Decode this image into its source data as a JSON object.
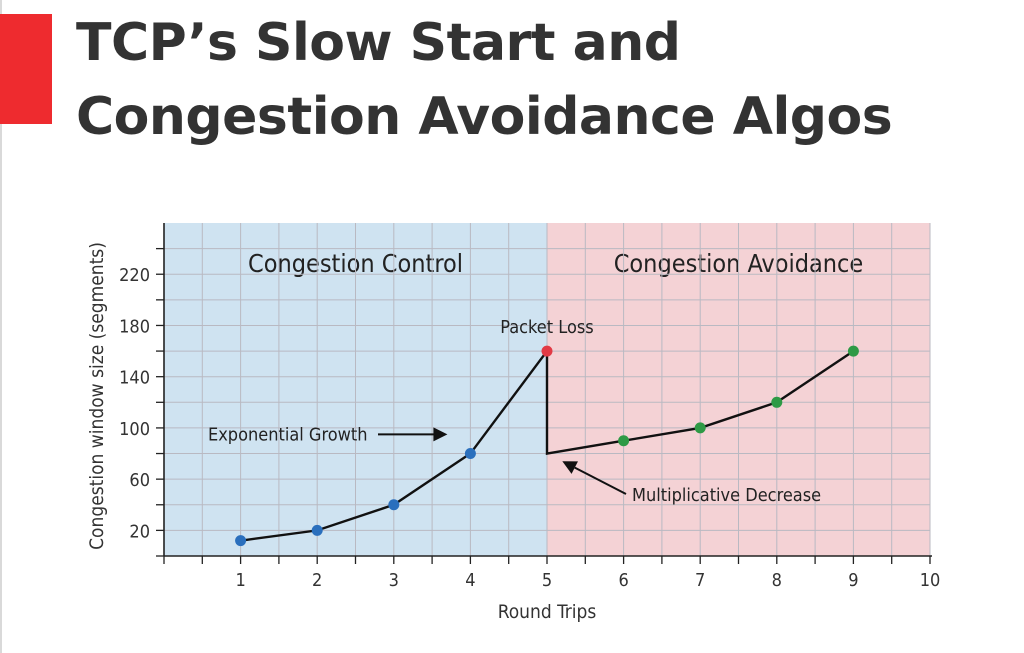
{
  "slide": {
    "title_line1": "TCP’s Slow Start and",
    "title_line2": "Congestion Avoidance Algos",
    "accent_color": "#ee2b2f"
  },
  "chart_data": {
    "type": "line",
    "xlabel": "Round Trips",
    "ylabel": "Congestion window size (segments)",
    "xlim": [
      0,
      10
    ],
    "ylim": [
      0,
      260
    ],
    "x_ticks": [
      1,
      2,
      3,
      4,
      5,
      6,
      7,
      8,
      9,
      10
    ],
    "y_ticks": [
      20,
      60,
      100,
      140,
      180,
      220
    ],
    "grid": true,
    "regions": [
      {
        "label": "Congestion Control",
        "x_range": [
          0,
          5
        ],
        "color": "#cfe3f1"
      },
      {
        "label": "Congestion Avoidance",
        "x_range": [
          5,
          10
        ],
        "color": "#f4d2d5"
      }
    ],
    "series": [
      {
        "color": "#2a6fbd",
        "points": [
          {
            "x": 1,
            "y": 12
          },
          {
            "x": 2,
            "y": 20
          },
          {
            "x": 3,
            "y": 40
          },
          {
            "x": 4,
            "y": 80
          }
        ]
      },
      {
        "color": "#e23a45",
        "points": [
          {
            "x": 5,
            "y": 160
          }
        ]
      },
      {
        "color": "#2e9a45",
        "points": [
          {
            "x": 6,
            "y": 90
          },
          {
            "x": 7,
            "y": 100
          },
          {
            "x": 8,
            "y": 120
          },
          {
            "x": 9,
            "y": 160
          }
        ]
      }
    ],
    "line_path": [
      {
        "x": 1,
        "y": 12
      },
      {
        "x": 2,
        "y": 20
      },
      {
        "x": 3,
        "y": 40
      },
      {
        "x": 4,
        "y": 80
      },
      {
        "x": 5,
        "y": 160
      },
      {
        "x": 5,
        "y": 80
      },
      {
        "x": 6,
        "y": 90
      },
      {
        "x": 7,
        "y": 100
      },
      {
        "x": 8,
        "y": 120
      },
      {
        "x": 9,
        "y": 160
      }
    ],
    "annotations": [
      {
        "text": "Packet Loss",
        "points_to": {
          "x": 5,
          "y": 160
        }
      },
      {
        "text": "Exponential Growth",
        "points_to": {
          "x": 3.7,
          "y": 95
        }
      },
      {
        "text": "Multiplicative Decrease",
        "points_to": {
          "x": 5.2,
          "y": 74
        }
      }
    ]
  }
}
